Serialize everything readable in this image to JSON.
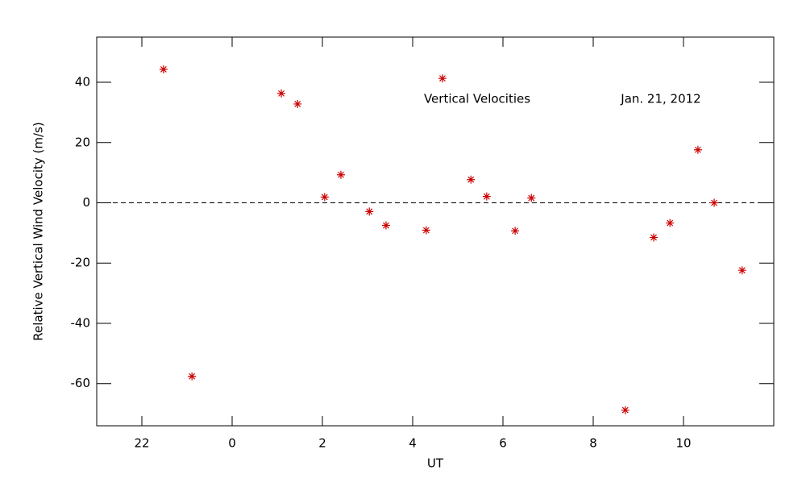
{
  "chart_data": {
    "type": "scatter",
    "xlabel": "UT",
    "ylabel": "Relative Vertical Wind Velocity (m/s)",
    "annotations": [
      "Vertical Velocities",
      "Jan. 21, 2012"
    ],
    "color": "#cc0000",
    "marker": "asterisk",
    "reference_line": 0,
    "xlim": [
      -3,
      12
    ],
    "xticks": [
      {
        "value": -2,
        "label": "22"
      },
      0,
      2,
      4,
      6,
      8,
      10
    ],
    "ylim": [
      -74,
      55
    ],
    "yticks": [
      -60,
      -40,
      -20,
      0,
      20,
      40
    ],
    "x": [
      -1.52,
      -0.89,
      1.09,
      1.45,
      2.05,
      2.41,
      3.04,
      3.41,
      4.3,
      4.66,
      5.29,
      5.64,
      6.27,
      6.63,
      8.71,
      9.34,
      9.7,
      10.32,
      10.68,
      11.3
    ],
    "values": [
      44.3,
      -57.6,
      36.3,
      32.8,
      1.9,
      9.3,
      -2.9,
      -7.5,
      -9.1,
      41.3,
      7.7,
      2.1,
      -9.3,
      1.6,
      -68.8,
      -11.5,
      -6.7,
      17.6,
      0,
      -22.4
    ]
  }
}
